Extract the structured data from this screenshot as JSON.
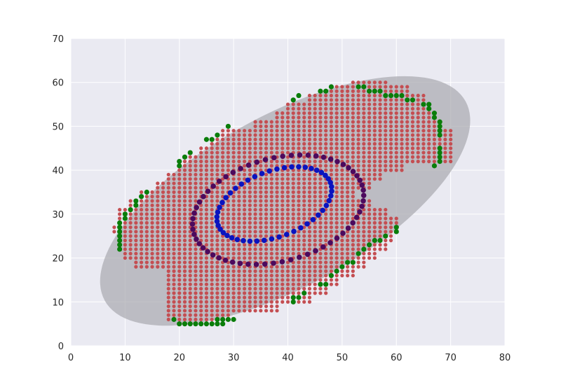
{
  "chart_data": {
    "type": "scatter",
    "title": "",
    "xlabel": "",
    "ylabel": "",
    "xlim": [
      0,
      80
    ],
    "ylim": [
      0,
      70
    ],
    "x_ticks": [
      "0",
      "10",
      "20",
      "30",
      "40",
      "50",
      "60",
      "70",
      "80"
    ],
    "y_ticks": [
      "0",
      "10",
      "20",
      "30",
      "40",
      "50",
      "60",
      "70"
    ],
    "grid": true,
    "legend": "none",
    "colors": {
      "background": "#eaeaf2",
      "grid": "#ffffff",
      "ellipse": "#aaaab0",
      "red": "#c44e52",
      "green": "#0a7d0a",
      "purple": "#4c0a5e",
      "blue": "#0a14c0"
    },
    "ellipse": {
      "cx": 39.5,
      "cy": 33.0,
      "rx": 38.0,
      "ry": 19.5,
      "angle_deg": 29
    },
    "series": [
      {
        "color": "red",
        "description": "Dense grid of points filling the main region",
        "rows": [
          {
            "y": 6,
            "x_range": [
              18,
              29
            ]
          },
          {
            "y": 8,
            "x_range": [
              18,
              38
            ]
          },
          {
            "y": 10,
            "x_range": [
              18,
              44
            ]
          },
          {
            "y": 12,
            "x_range": [
              18,
              47
            ]
          },
          {
            "y": 14,
            "x_range": [
              18,
              49
            ]
          },
          {
            "y": 16,
            "x_range": [
              18,
              52
            ]
          },
          {
            "y": 18,
            "x_range": [
              12,
              54
            ]
          },
          {
            "y": 20,
            "x_range": [
              10,
              56
            ]
          },
          {
            "y": 22,
            "x_range": [
              9,
              58
            ]
          },
          {
            "y": 24,
            "x_range": [
              9,
              59
            ]
          },
          {
            "y": 26,
            "x_range": [
              8,
              60
            ]
          },
          {
            "y": 28,
            "x_range": [
              9,
              60
            ]
          },
          {
            "y": 30,
            "x_range": [
              9,
              58
            ]
          },
          {
            "y": 32,
            "x_range": [
              11,
              55
            ]
          },
          {
            "y": 34,
            "x_range": [
              13,
              52
            ]
          },
          {
            "y": 36,
            "x_range": [
              16,
              55
            ]
          },
          {
            "y": 38,
            "x_range": [
              18,
              57
            ]
          },
          {
            "y": 40,
            "x_range": [
              20,
              61
            ]
          },
          {
            "y": 42,
            "x_range": [
              21,
              70
            ]
          },
          {
            "y": 44,
            "x_range": [
              24,
              70
            ]
          },
          {
            "y": 46,
            "x_range": [
              26,
              70
            ]
          },
          {
            "y": 48,
            "x_range": [
              28,
              70
            ]
          },
          {
            "y": 50,
            "x_range": [
              34,
              68
            ]
          },
          {
            "y": 52,
            "x_range": [
              38,
              67
            ]
          },
          {
            "y": 54,
            "x_range": [
              40,
              66
            ]
          },
          {
            "y": 56,
            "x_range": [
              44,
              65
            ]
          },
          {
            "y": 58,
            "x_range": [
              48,
              62
            ]
          },
          {
            "y": 60,
            "x_range": [
              52,
              58
            ]
          }
        ]
      },
      {
        "color": "green",
        "description": "Boundary points around the red region",
        "points": [
          [
            9,
            22
          ],
          [
            9,
            23
          ],
          [
            9,
            24
          ],
          [
            9,
            25
          ],
          [
            9,
            26
          ],
          [
            9,
            27
          ],
          [
            9,
            28
          ],
          [
            10,
            29
          ],
          [
            10,
            30
          ],
          [
            11,
            31
          ],
          [
            12,
            32
          ],
          [
            12,
            33
          ],
          [
            13,
            34
          ],
          [
            14,
            35
          ],
          [
            19,
            6
          ],
          [
            20,
            5
          ],
          [
            21,
            5
          ],
          [
            22,
            5
          ],
          [
            23,
            5
          ],
          [
            24,
            5
          ],
          [
            25,
            5
          ],
          [
            26,
            5
          ],
          [
            27,
            5
          ],
          [
            28,
            5
          ],
          [
            27,
            6
          ],
          [
            28,
            6
          ],
          [
            29,
            6
          ],
          [
            30,
            6
          ],
          [
            20,
            41
          ],
          [
            20,
            42
          ],
          [
            21,
            43
          ],
          [
            22,
            44
          ],
          [
            25,
            47
          ],
          [
            26,
            47
          ],
          [
            27,
            48
          ],
          [
            29,
            50
          ],
          [
            41,
            10
          ],
          [
            41,
            11
          ],
          [
            42,
            11
          ],
          [
            43,
            12
          ],
          [
            46,
            14
          ],
          [
            47,
            14
          ],
          [
            48,
            16
          ],
          [
            49,
            17
          ],
          [
            50,
            18
          ],
          [
            51,
            19
          ],
          [
            52,
            19
          ],
          [
            53,
            21
          ],
          [
            54,
            22
          ],
          [
            55,
            23
          ],
          [
            56,
            24
          ],
          [
            57,
            24
          ],
          [
            58,
            25
          ],
          [
            60,
            26
          ],
          [
            60,
            27
          ],
          [
            41,
            56
          ],
          [
            42,
            57
          ],
          [
            46,
            58
          ],
          [
            47,
            58
          ],
          [
            48,
            59
          ],
          [
            53,
            59
          ],
          [
            54,
            59
          ],
          [
            55,
            58
          ],
          [
            56,
            58
          ],
          [
            57,
            58
          ],
          [
            58,
            57
          ],
          [
            59,
            57
          ],
          [
            60,
            57
          ],
          [
            61,
            57
          ],
          [
            62,
            56
          ],
          [
            63,
            56
          ],
          [
            65,
            55
          ],
          [
            66,
            55
          ],
          [
            66,
            54
          ],
          [
            67,
            53
          ],
          [
            67,
            52
          ],
          [
            68,
            51
          ],
          [
            68,
            50
          ],
          [
            68,
            49
          ],
          [
            68,
            48
          ],
          [
            68,
            45
          ],
          [
            68,
            44
          ],
          [
            68,
            43
          ],
          [
            68,
            42
          ],
          [
            67,
            41
          ]
        ]
      },
      {
        "color": "purple",
        "description": "Outer ring of points",
        "shape": "ellipse",
        "cx": 38.2,
        "cy": 31.0,
        "rx": 16.5,
        "ry": 11.5,
        "angle_deg": 24,
        "count": 62
      },
      {
        "color": "blue",
        "description": "Inner ring of points",
        "shape": "ellipse",
        "cx": 37.5,
        "cy": 32.3,
        "rx": 11.5,
        "ry": 7.2,
        "angle_deg": 30,
        "count": 48
      }
    ]
  }
}
